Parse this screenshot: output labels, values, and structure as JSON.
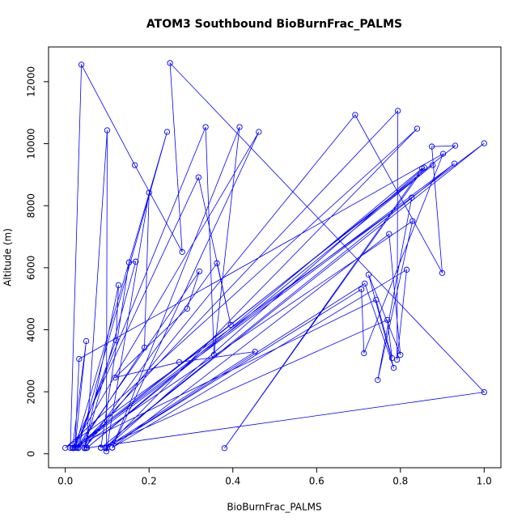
{
  "chart_data": {
    "type": "line",
    "title": "ATOM3 Southbound BioBurnFrac_PALMS",
    "x_label": "BioBurnFrac_PALMS",
    "y_label": "Altitude (m)",
    "x": [
      0.012,
      0.0385,
      0.166,
      0.279,
      0.25,
      1.0,
      0.05,
      0.1,
      0.098,
      0.2,
      0.189,
      0.031,
      0.243,
      0.023,
      0.335,
      0.355,
      0.416,
      0.112,
      0.462,
      0.017,
      0.318,
      0.395,
      0.362,
      0.046,
      0.692,
      0.9,
      0.875,
      0.931,
      0.027,
      1.0,
      0.085,
      0.929,
      0.02,
      0.877,
      0.052,
      0.852,
      0.38,
      0.857,
      0.096,
      0.84,
      0.0,
      0.827,
      0.746,
      0.829,
      0.031,
      0.794,
      0.792,
      0.815,
      0.112,
      0.773,
      0.8,
      0.724,
      0.784,
      0.715,
      0.1,
      0.707,
      0.713,
      0.902,
      0.033,
      0.023,
      0.05,
      0.017,
      0.742,
      0.78,
      0.769,
      0.085,
      0.152,
      0.168,
      0.046,
      0.127,
      0.121,
      0.027,
      0.32,
      0.291,
      0.119,
      0.272,
      0.453,
      0.096
    ],
    "series": [
      {
        "color": "#0000ff",
        "values": [
          190,
          12549,
          9307,
          6510,
          12601,
          1987,
          185,
          10431,
          78,
          8418,
          3425,
          195,
          10379,
          190,
          10536,
          3190,
          10536,
          200,
          10379,
          185,
          8915,
          4157,
          6144,
          180,
          10928,
          5830,
          9908,
          9935,
          200,
          10013,
          190,
          9359,
          185,
          9307,
          195,
          9203,
          183,
          9229,
          185,
          10484,
          190,
          8261,
          2379,
          7503,
          185,
          11059,
          3033,
          5935,
          195,
          7085,
          3190,
          5778,
          2771,
          5490,
          190,
          5307,
          3242,
          9673,
          3059,
          200,
          3634,
          190,
          4967,
          3085,
          4314,
          200,
          6170,
          6196,
          190,
          5438,
          3660,
          195,
          5882,
          4680,
          2458,
          2954,
          3294,
          195
        ]
      }
    ],
    "xlim": [
      -0.04,
      1.04
    ],
    "ylim": [
      -450,
      13120
    ],
    "xticks": [
      {
        "value": 0,
        "label": "0.0"
      },
      0.2,
      0.4,
      0.6,
      0.8,
      {
        "value": 1,
        "label": "1.0"
      }
    ],
    "yticks": [
      0,
      2000,
      4000,
      6000,
      8000,
      10000,
      12000
    ]
  }
}
